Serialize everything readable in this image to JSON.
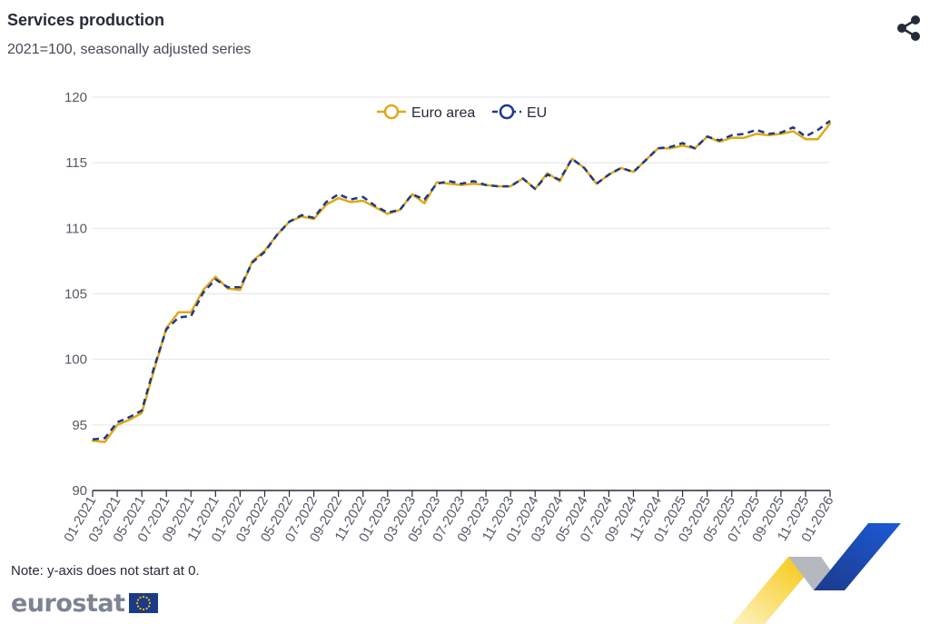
{
  "header": {
    "title": "Services production",
    "subtitle": "2021=100, seasonally adjusted series"
  },
  "footer": {
    "note": "Note: y-axis does not start at 0.",
    "logo_text": "eurostat"
  },
  "icons": {
    "share": "share-icon",
    "flag": "eu-flag-icon"
  },
  "colors": {
    "euro_area": "#e0a918",
    "eu": "#1b3a8a",
    "grid": "#e3e5e8",
    "axis": "#262b38"
  },
  "chart_data": {
    "type": "line",
    "title": "Services production",
    "subtitle": "2021=100, seasonally adjusted series",
    "xlabel": "",
    "ylabel": "",
    "ylim": [
      90,
      120
    ],
    "yticks": [
      90,
      95,
      100,
      105,
      110,
      115,
      120
    ],
    "grid": true,
    "legend_position": "top-center",
    "x": [
      "01-2021",
      "02-2021",
      "03-2021",
      "04-2021",
      "05-2021",
      "06-2021",
      "07-2021",
      "08-2021",
      "09-2021",
      "10-2021",
      "11-2021",
      "12-2021",
      "01-2022",
      "02-2022",
      "03-2022",
      "04-2022",
      "05-2022",
      "06-2022",
      "07-2022",
      "08-2022",
      "09-2022",
      "10-2022",
      "11-2022",
      "12-2022",
      "01-2023",
      "02-2023",
      "03-2023",
      "04-2023",
      "05-2023",
      "06-2023",
      "07-2023",
      "08-2023",
      "09-2023",
      "10-2023",
      "11-2023",
      "12-2023",
      "01-2024",
      "02-2024",
      "03-2024",
      "04-2024",
      "05-2024",
      "06-2024",
      "07-2024",
      "08-2024",
      "09-2024",
      "10-2024",
      "11-2024",
      "12-2024",
      "01-2025",
      "02-2025",
      "03-2025",
      "04-2025",
      "05-2025",
      "06-2025",
      "07-2025",
      "08-2025",
      "09-2025",
      "10-2025",
      "11-2025",
      "12-2025",
      "01-2026"
    ],
    "xtick_labels": [
      "01-2021",
      "03-2021",
      "05-2021",
      "07-2021",
      "09-2021",
      "11-2021",
      "01-2022",
      "03-2022",
      "05-2022",
      "07-2022",
      "09-2022",
      "11-2022",
      "01-2023",
      "03-2023",
      "05-2023",
      "07-2023",
      "09-2023",
      "11-2023",
      "01-2024",
      "03-2024",
      "05-2024",
      "07-2024",
      "09-2024",
      "11-2024",
      "01-2025",
      "03-2025",
      "05-2025",
      "07-2025",
      "09-2025",
      "11-2025",
      "01-2026"
    ],
    "series": [
      {
        "name": "Euro area",
        "color": "#e0a918",
        "dash": "solid",
        "values": [
          93.8,
          93.7,
          95.0,
          95.4,
          95.9,
          99.2,
          102.4,
          103.6,
          103.6,
          105.3,
          106.3,
          105.4,
          105.3,
          107.5,
          108.3,
          109.5,
          110.5,
          110.9,
          110.7,
          111.8,
          112.3,
          112.0,
          112.1,
          111.6,
          111.1,
          111.4,
          112.6,
          111.9,
          113.5,
          113.4,
          113.3,
          113.4,
          113.3,
          113.2,
          113.2,
          113.8,
          113.0,
          114.2,
          113.6,
          115.3,
          114.6,
          113.4,
          114.1,
          114.6,
          114.3,
          115.2,
          116.1,
          116.1,
          116.3,
          116.1,
          117.0,
          116.6,
          116.9,
          116.9,
          117.2,
          117.1,
          117.2,
          117.4,
          116.8,
          116.8,
          118.0
        ]
      },
      {
        "name": "EU",
        "color": "#1b3a8a",
        "dash": "dashed",
        "values": [
          93.9,
          94.0,
          95.2,
          95.6,
          96.1,
          99.4,
          102.3,
          103.2,
          103.3,
          105.1,
          106.1,
          105.5,
          105.5,
          107.4,
          108.2,
          109.5,
          110.5,
          111.0,
          110.8,
          112.0,
          112.6,
          112.2,
          112.4,
          111.7,
          111.2,
          111.4,
          112.6,
          112.2,
          113.4,
          113.6,
          113.4,
          113.6,
          113.3,
          113.2,
          113.2,
          113.8,
          113.0,
          114.1,
          113.7,
          115.3,
          114.6,
          113.4,
          114.1,
          114.6,
          114.3,
          115.2,
          116.1,
          116.2,
          116.5,
          116.1,
          117.0,
          116.7,
          117.1,
          117.2,
          117.5,
          117.2,
          117.3,
          117.7,
          117.0,
          117.5,
          118.2
        ]
      }
    ]
  }
}
